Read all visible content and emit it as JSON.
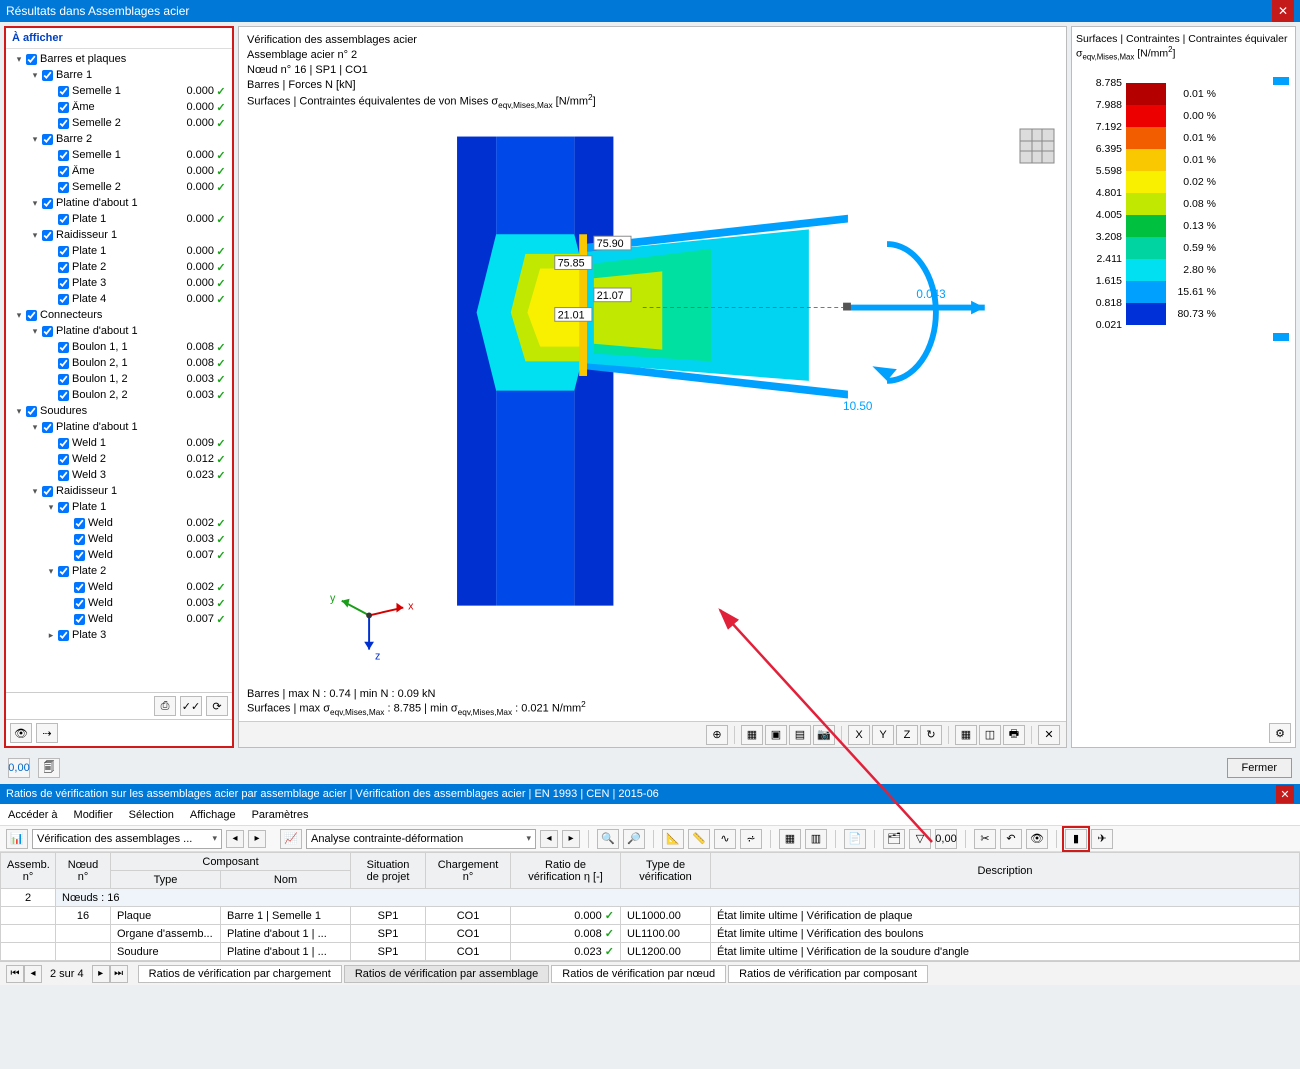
{
  "window": {
    "title": "Résultats dans Assemblages acier"
  },
  "tree": {
    "header": "À afficher",
    "rows": [
      {
        "depth": 0,
        "toggle": "v",
        "label": "Barres et plaques",
        "val": "",
        "check": false
      },
      {
        "depth": 1,
        "toggle": "v",
        "label": "Barre 1",
        "val": "",
        "check": false
      },
      {
        "depth": 2,
        "toggle": "",
        "label": "Semelle 1",
        "val": "0.000",
        "check": true
      },
      {
        "depth": 2,
        "toggle": "",
        "label": "Âme",
        "val": "0.000",
        "check": true
      },
      {
        "depth": 2,
        "toggle": "",
        "label": "Semelle 2",
        "val": "0.000",
        "check": true
      },
      {
        "depth": 1,
        "toggle": "v",
        "label": "Barre 2",
        "val": "",
        "check": false
      },
      {
        "depth": 2,
        "toggle": "",
        "label": "Semelle 1",
        "val": "0.000",
        "check": true
      },
      {
        "depth": 2,
        "toggle": "",
        "label": "Âme",
        "val": "0.000",
        "check": true
      },
      {
        "depth": 2,
        "toggle": "",
        "label": "Semelle 2",
        "val": "0.000",
        "check": true
      },
      {
        "depth": 1,
        "toggle": "v",
        "label": "Platine d'about 1",
        "val": "",
        "check": false
      },
      {
        "depth": 2,
        "toggle": "",
        "label": "Plate 1",
        "val": "0.000",
        "check": true
      },
      {
        "depth": 1,
        "toggle": "v",
        "label": "Raidisseur 1",
        "val": "",
        "check": false
      },
      {
        "depth": 2,
        "toggle": "",
        "label": "Plate 1",
        "val": "0.000",
        "check": true
      },
      {
        "depth": 2,
        "toggle": "",
        "label": "Plate 2",
        "val": "0.000",
        "check": true
      },
      {
        "depth": 2,
        "toggle": "",
        "label": "Plate 3",
        "val": "0.000",
        "check": true
      },
      {
        "depth": 2,
        "toggle": "",
        "label": "Plate 4",
        "val": "0.000",
        "check": true
      },
      {
        "depth": 0,
        "toggle": "v",
        "label": "Connecteurs",
        "val": "",
        "check": false
      },
      {
        "depth": 1,
        "toggle": "v",
        "label": "Platine d'about 1",
        "val": "",
        "check": false
      },
      {
        "depth": 2,
        "toggle": "",
        "label": "Boulon 1, 1",
        "val": "0.008",
        "check": true
      },
      {
        "depth": 2,
        "toggle": "",
        "label": "Boulon 2, 1",
        "val": "0.008",
        "check": true
      },
      {
        "depth": 2,
        "toggle": "",
        "label": "Boulon 1, 2",
        "val": "0.003",
        "check": true
      },
      {
        "depth": 2,
        "toggle": "",
        "label": "Boulon 2, 2",
        "val": "0.003",
        "check": true
      },
      {
        "depth": 0,
        "toggle": "v",
        "label": "Soudures",
        "val": "",
        "check": false
      },
      {
        "depth": 1,
        "toggle": "v",
        "label": "Platine d'about 1",
        "val": "",
        "check": false
      },
      {
        "depth": 2,
        "toggle": "",
        "label": "Weld 1",
        "val": "0.009",
        "check": true
      },
      {
        "depth": 2,
        "toggle": "",
        "label": "Weld 2",
        "val": "0.012",
        "check": true
      },
      {
        "depth": 2,
        "toggle": "",
        "label": "Weld 3",
        "val": "0.023",
        "check": true
      },
      {
        "depth": 1,
        "toggle": "v",
        "label": "Raidisseur 1",
        "val": "",
        "check": false
      },
      {
        "depth": 2,
        "toggle": "v",
        "label": "Plate 1",
        "val": "",
        "check": false
      },
      {
        "depth": 3,
        "toggle": "",
        "label": "Weld",
        "val": "0.002",
        "check": true
      },
      {
        "depth": 3,
        "toggle": "",
        "label": "Weld",
        "val": "0.003",
        "check": true
      },
      {
        "depth": 3,
        "toggle": "",
        "label": "Weld",
        "val": "0.007",
        "check": true
      },
      {
        "depth": 2,
        "toggle": "v",
        "label": "Plate 2",
        "val": "",
        "check": false
      },
      {
        "depth": 3,
        "toggle": "",
        "label": "Weld",
        "val": "0.002",
        "check": true
      },
      {
        "depth": 3,
        "toggle": "",
        "label": "Weld",
        "val": "0.003",
        "check": true
      },
      {
        "depth": 3,
        "toggle": "",
        "label": "Weld",
        "val": "0.007",
        "check": true
      },
      {
        "depth": 2,
        "toggle": ">",
        "label": "Plate 3",
        "val": "",
        "check": false
      }
    ]
  },
  "view": {
    "line1": "Vérification des assemblages acier",
    "line2": "Assemblage acier n° 2",
    "line3": "Nœud n° 16 | SP1 | CO1",
    "line4": "Barres | Forces N [kN]",
    "line5_a": "Surfaces | Contraintes équivalentes de von Mises σ",
    "line5_b": " [N/mm",
    "line5_sub": "eqv,Mises,Max",
    "bot1": "Barres | max N : 0.74 | min N : 0.09 kN",
    "bot2_a": "Surfaces | max σ",
    "bot2_b": " : 8.785 | min σ",
    "bot2_c": " : 0.021 N/mm",
    "model": {
      "label_7590": "75.90",
      "label_7585": "75.85",
      "label_2107": "21.07",
      "label_2101": "21.01",
      "label_1050": "10.50",
      "label_0043": "0.043",
      "axis_x": "x",
      "axis_y": "y",
      "axis_z": "z"
    }
  },
  "legend": {
    "title1": "Surfaces | Contraintes | Contraintes équivaler",
    "title2_a": "σ",
    "title2_sub": "eqv,Mises,Max",
    "title2_b": " [N/mm",
    "stops": [
      {
        "v": "8.785",
        "c": "#b50000",
        "p": "0.01 %"
      },
      {
        "v": "7.988",
        "c": "#ed0000",
        "p": "0.00 %"
      },
      {
        "v": "7.192",
        "c": "#f25d00",
        "p": "0.01 %"
      },
      {
        "v": "6.395",
        "c": "#f9c800",
        "p": "0.01 %"
      },
      {
        "v": "5.598",
        "c": "#f9f000",
        "p": "0.02 %"
      },
      {
        "v": "4.801",
        "c": "#c0e800",
        "p": "0.08 %"
      },
      {
        "v": "4.005",
        "c": "#00c040",
        "p": "0.13 %"
      },
      {
        "v": "3.208",
        "c": "#00d4a0",
        "p": "0.59 %"
      },
      {
        "v": "2.411",
        "c": "#00e0f0",
        "p": "2.80 %"
      },
      {
        "v": "1.615",
        "c": "#00a0ff",
        "p": "15.61 %"
      },
      {
        "v": "0.818",
        "c": "#0030d8",
        "p": "80.73 %"
      },
      {
        "v": "0.021",
        "c": "",
        "p": ""
      }
    ]
  },
  "close_button": "Fermer",
  "section2": {
    "title": "Ratios de vérification sur les assemblages acier par assemblage acier | Vérification des assemblages acier | EN 1993 | CEN | 2015-06",
    "menus": [
      "Accéder à",
      "Modifier",
      "Sélection",
      "Affichage",
      "Paramètres"
    ],
    "dd1": "Vérification des assemblages ...",
    "dd2": "Analyse contrainte-déformation"
  },
  "table": {
    "headers": {
      "assemb": "Assemb.\nn°",
      "noeud": "Nœud\nn°",
      "composant": "Composant",
      "type": "Type",
      "nom": "Nom",
      "situation": "Situation\nde projet",
      "charg": "Chargement\nn°",
      "ratio": "Ratio de\nvérification η [-]",
      "typever": "Type de\nvérification",
      "desc": "Description"
    },
    "assemb_no": "2",
    "noeud_row": "Nœuds : 16",
    "rows": [
      {
        "noeud": "16",
        "type": "Plaque",
        "nom": "Barre 1 | Semelle 1",
        "sit": "SP1",
        "ch": "CO1",
        "ratio": "0.000",
        "tv": "UL1000.00",
        "desc": "État limite ultime | Vérification de plaque"
      },
      {
        "noeud": "",
        "type": "Organe d'assemb...",
        "nom": "Platine d'about 1 | ...",
        "sit": "SP1",
        "ch": "CO1",
        "ratio": "0.008",
        "tv": "UL1100.00",
        "desc": "État limite ultime | Vérification des boulons"
      },
      {
        "noeud": "",
        "type": "Soudure",
        "nom": "Platine d'about 1 | ...",
        "sit": "SP1",
        "ch": "CO1",
        "ratio": "0.023",
        "tv": "UL1200.00",
        "desc": "État limite ultime | Vérification de la soudure d'angle"
      }
    ]
  },
  "tabs": {
    "counter": "2 sur 4",
    "items": [
      "Ratios de vérification par chargement",
      "Ratios de vérification par assemblage",
      "Ratios de vérification par nœud",
      "Ratios de vérification par composant"
    ]
  }
}
